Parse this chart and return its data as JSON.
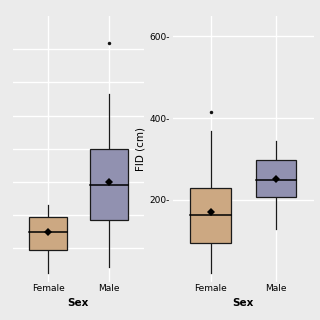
{
  "fig_bg": "#EBEBEB",
  "panel_bg": "#EBEBEB",
  "grid_color": "#FFFFFF",
  "female_color": "#CCA882",
  "male_color": "#9191B0",
  "box_edge_color": "#1A1A1A",
  "median_color": "#000000",
  "mean_marker_color": "#000000",
  "left_panel": {
    "ylabel": "",
    "xlabel": "Sex",
    "ylim_min": 0,
    "ylim_max": 800,
    "yticks": [],
    "hgrid": [
      100,
      200,
      300,
      400,
      500,
      600,
      700
    ],
    "female": {
      "q1": 95,
      "median": 148,
      "q3": 195,
      "mean": 150,
      "whisker_low": 25,
      "whisker_high": 230,
      "outlier_high": null
    },
    "male": {
      "q1": 185,
      "median": 290,
      "q3": 400,
      "mean": 300,
      "whisker_low": 45,
      "whisker_high": 565,
      "outlier_high": 720
    }
  },
  "right_panel": {
    "ylabel": "FID (cm)",
    "xlabel": "Sex",
    "ylim_min": 0,
    "ylim_max": 650,
    "yticks": [
      200,
      400,
      600
    ],
    "ytick_labels": [
      "200-",
      "400-",
      "600-"
    ],
    "hgrid": [
      200,
      400,
      600
    ],
    "female": {
      "q1": 95,
      "median": 163,
      "q3": 228,
      "mean": 170,
      "whisker_low": 20,
      "whisker_high": 368,
      "outlier_high": 415
    },
    "male": {
      "q1": 208,
      "median": 248,
      "q3": 298,
      "mean": 250,
      "whisker_low": 128,
      "whisker_high": 345,
      "outlier_high": null
    }
  }
}
